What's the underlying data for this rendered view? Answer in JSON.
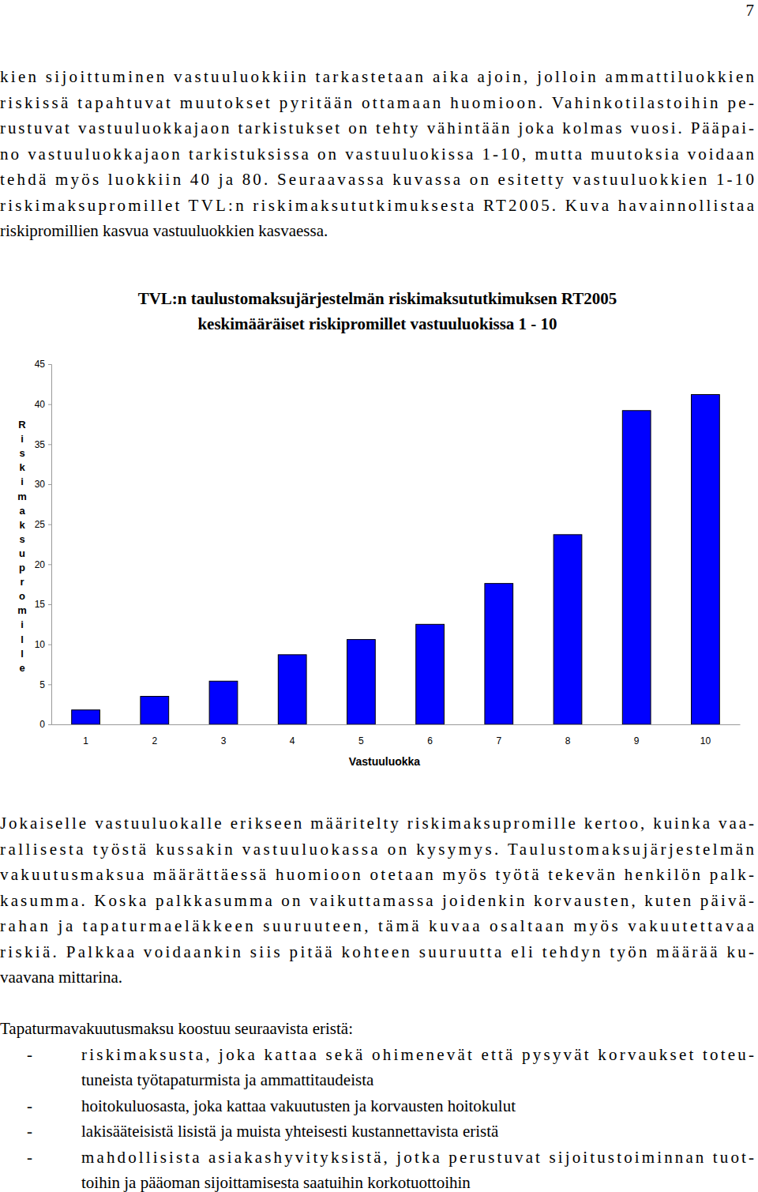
{
  "page_number": 7,
  "intro": {
    "lines": [
      "kien sijoittuminen vastuuluokkiin tarkastetaan aika ajoin, jolloin ammattiluokkien",
      "riskissä tapahtuvat muutokset pyritään ottamaan huomioon. Vahinkotilastoihin pe-",
      "rustuvat vastuuluokkajaon tarkistukset on tehty vähintään joka kolmas vuosi. Pääpai-",
      "no vastuuluokkajaon tarkistuksissa on vastuuluokissa 1-10, mutta muutoksia voidaan",
      "tehdä myös luokkiin 40 ja 80. Seuraavassa kuvassa on esitetty vastuuluokkien 1-10",
      "riskimaksupromillet TVL:n riskimaksututkimuksesta RT2005. Kuva havainnollistaa",
      "riskipromillien kasvua vastuuluokkien kasvaessa."
    ]
  },
  "chart_data": {
    "type": "bar",
    "title": "TVL:n taulustomaksujärjestelmän riskimaksututkimuksen RT2005\nkeskimääräiset riskipromillet vastuuluokissa 1 - 10",
    "x_label": "Vastuuluokka",
    "y_label": "Riskimaksupromille",
    "categories": [
      "1",
      "2",
      "3",
      "4",
      "5",
      "6",
      "7",
      "8",
      "9",
      "10"
    ],
    "values": [
      1.8,
      3.5,
      5.4,
      8.7,
      10.6,
      12.5,
      17.6,
      23.7,
      39.2,
      41.2
    ],
    "color": "#0000ff",
    "ylim": [
      0,
      45
    ],
    "yticks": [
      0,
      5,
      10,
      15,
      20,
      25,
      30,
      35,
      40,
      45
    ],
    "grid": false
  },
  "body": {
    "lines": [
      "Jokaiselle vastuuluokalle erikseen määritelty riskimaksupromille kertoo, kuinka vaa-",
      "rallisesta työstä kussakin vastuuluokassa on kysymys. Taulustomaksujärjestelmän",
      "vakuutusmaksua määrättäessä huomioon otetaan myös työtä tekevän henkilön palk-",
      "kasumma. Koska palkkasumma on vaikuttamassa joidenkin korvausten, kuten päivä-",
      "rahan ja tapaturmaeläkkeen suuruuteen, tämä kuvaa osaltaan myös vakuutettavaa",
      "riskiä. Palkkaa voidaankin siis pitää kohteen suuruutta eli tehdyn työn määrää ku-",
      "vaavana mittarina."
    ]
  },
  "list": {
    "heading": "Tapaturmavakuutusmaksu koostuu seuraavista eristä:",
    "marker": "-",
    "items": [
      {
        "lines": [
          "riskimaksusta, joka kattaa sekä ohimenevät että pysyvät korvaukset toteu-",
          "tuneista työtapaturmista ja ammattitaudeista"
        ]
      },
      {
        "lines": [
          "hoitokuluosasta, joka kattaa vakuutusten ja korvausten hoitokulut"
        ]
      },
      {
        "lines": [
          "lakisääteisistä lisistä ja muista yhteisesti kustannettavista eristä"
        ]
      },
      {
        "lines": [
          "mahdollisista asiakashyvityksistä, jotka perustuvat sijoitustoiminnan tuot-",
          "toihin ja pääoman sijoittamisesta saatuihin korkotuottoihin"
        ]
      }
    ]
  }
}
